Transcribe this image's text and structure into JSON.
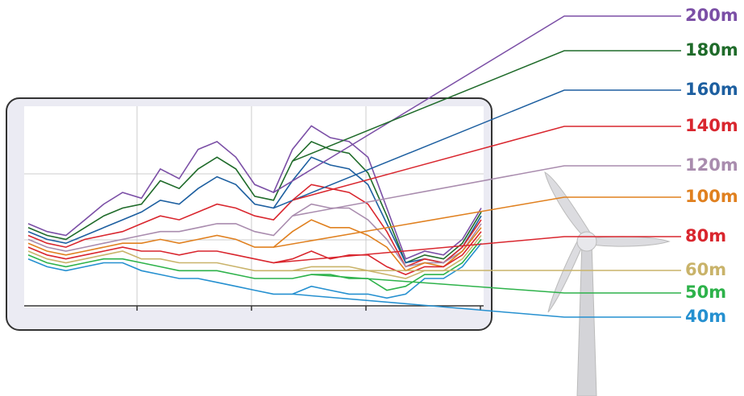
{
  "chart_data": {
    "type": "line",
    "ylim": [
      0,
      100
    ],
    "series": [
      {
        "name": "200m",
        "color": "#7b4fa6",
        "values": [
          42,
          38,
          36,
          44,
          52,
          58,
          55,
          70,
          65,
          80,
          84,
          76,
          62,
          58,
          80,
          92,
          86,
          84,
          76,
          50,
          24,
          28,
          26,
          34,
          50
        ]
      },
      {
        "name": "180m",
        "color": "#1f6b2a",
        "values": [
          40,
          36,
          34,
          40,
          46,
          50,
          52,
          64,
          60,
          70,
          76,
          70,
          56,
          54,
          74,
          84,
          80,
          78,
          68,
          46,
          22,
          26,
          24,
          32,
          48
        ]
      },
      {
        "name": "160m",
        "color": "#1d5fa0",
        "values": [
          38,
          34,
          32,
          36,
          40,
          44,
          48,
          54,
          52,
          60,
          66,
          62,
          52,
          50,
          64,
          76,
          72,
          70,
          62,
          42,
          22,
          24,
          22,
          30,
          46
        ]
      },
      {
        "name": "140m",
        "color": "#d9262e",
        "values": [
          36,
          32,
          30,
          34,
          36,
          38,
          42,
          46,
          44,
          48,
          52,
          50,
          46,
          44,
          54,
          62,
          60,
          58,
          52,
          38,
          20,
          24,
          22,
          30,
          44
        ]
      },
      {
        "name": "120m",
        "color": "#a98cae",
        "values": [
          34,
          30,
          28,
          30,
          32,
          34,
          36,
          38,
          38,
          40,
          42,
          42,
          38,
          36,
          46,
          52,
          50,
          50,
          44,
          34,
          20,
          22,
          22,
          28,
          42
        ]
      },
      {
        "name": "100m",
        "color": "#e0801f",
        "values": [
          32,
          28,
          26,
          28,
          30,
          32,
          32,
          34,
          32,
          34,
          36,
          34,
          30,
          30,
          38,
          44,
          40,
          40,
          36,
          30,
          18,
          22,
          20,
          28,
          40
        ]
      },
      {
        "name": "80m",
        "color": "#d9262e",
        "values": [
          30,
          26,
          24,
          26,
          28,
          30,
          28,
          28,
          26,
          28,
          28,
          26,
          24,
          22,
          24,
          28,
          24,
          26,
          26,
          20,
          16,
          20,
          20,
          26,
          38
        ]
      },
      {
        "name": "60m",
        "color": "#c9b36a",
        "values": [
          28,
          24,
          22,
          24,
          26,
          28,
          24,
          24,
          22,
          22,
          22,
          20,
          18,
          18,
          18,
          20,
          20,
          20,
          18,
          16,
          14,
          18,
          18,
          24,
          36
        ]
      },
      {
        "name": "50m",
        "color": "#2db24a",
        "values": [
          26,
          22,
          20,
          22,
          24,
          24,
          22,
          20,
          18,
          18,
          18,
          16,
          14,
          14,
          14,
          16,
          16,
          14,
          14,
          8,
          10,
          16,
          16,
          22,
          34
        ]
      },
      {
        "name": "40m",
        "color": "#2590d0",
        "values": [
          24,
          20,
          18,
          20,
          22,
          22,
          18,
          16,
          14,
          14,
          12,
          10,
          8,
          6,
          6,
          10,
          8,
          6,
          6,
          4,
          6,
          14,
          14,
          20,
          32
        ]
      }
    ]
  }
}
